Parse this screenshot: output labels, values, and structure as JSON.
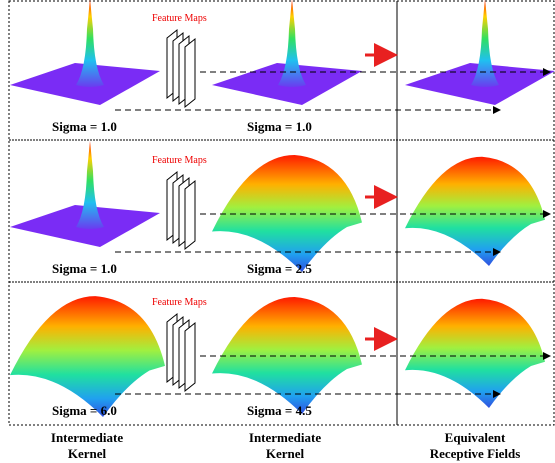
{
  "rows": [
    {
      "feature_maps": "Feature Maps",
      "left_label": "Sigma = 1.0",
      "middle_label": "Sigma = 1.0"
    },
    {
      "feature_maps": "Feature Maps",
      "left_label": "Sigma = 1.0",
      "middle_label": "Sigma = 2.5"
    },
    {
      "feature_maps": "Feature Maps",
      "left_label": "Sigma = 6.0",
      "middle_label": "Sigma = 4.5"
    }
  ],
  "columns": [
    {
      "lines": [
        "Intermediate",
        "Kernel"
      ]
    },
    {
      "lines": [
        "Intermediate",
        "Kernel"
      ]
    },
    {
      "lines": [
        "Equivalent",
        "Receptive Fields"
      ]
    }
  ]
}
